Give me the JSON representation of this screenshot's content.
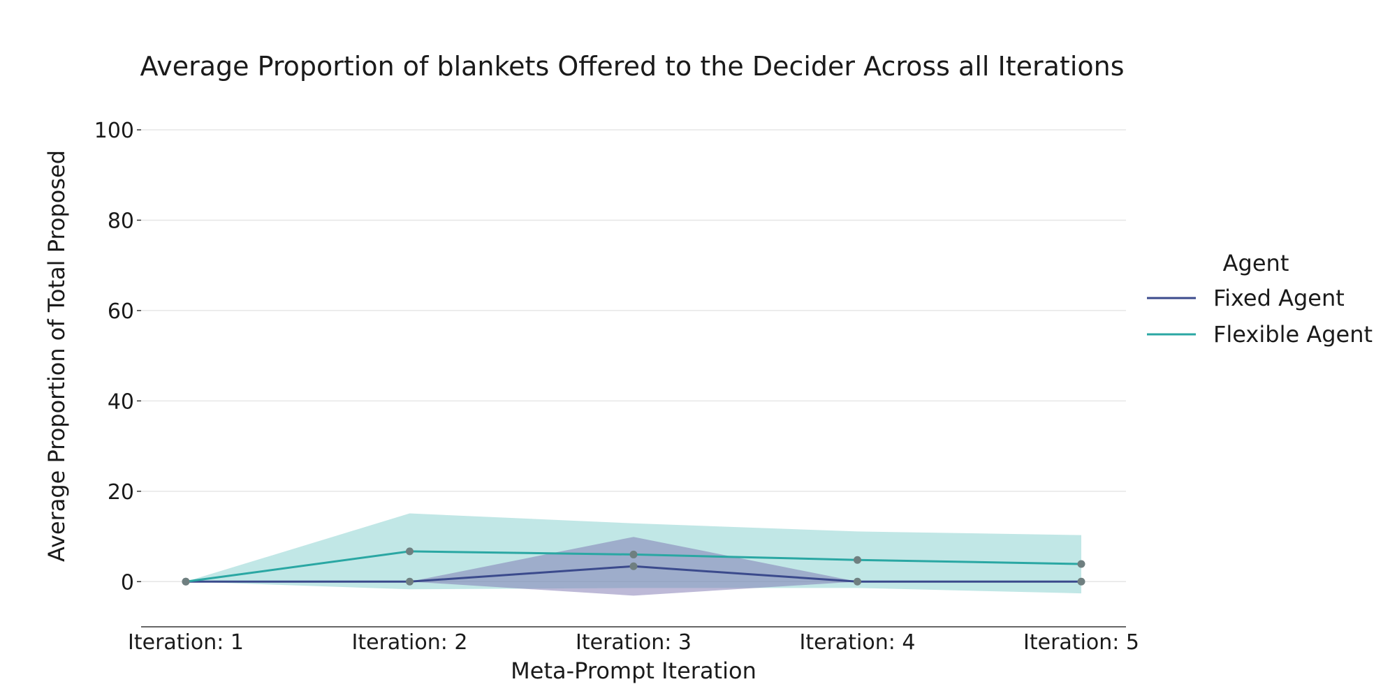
{
  "chart_data": {
    "type": "line",
    "title": "Average Proportion of blankets Offered to the Decider Across all Iterations",
    "xlabel": "Meta-Prompt Iteration",
    "ylabel": "Average Proportion of Total Proposed",
    "categories": [
      "Iteration: 1",
      "Iteration: 2",
      "Iteration: 3",
      "Iteration: 4",
      "Iteration: 5"
    ],
    "ylim": [
      -10,
      100
    ],
    "yticks": [
      0,
      20,
      40,
      60,
      80,
      100
    ],
    "grid": "horizontal",
    "legend": {
      "title": "Agent",
      "placement": "right"
    },
    "series": [
      {
        "name": "Fixed Agent",
        "color": "#3b4a8c",
        "band_color": "#7b74b0",
        "values": [
          0,
          0,
          3.4,
          0,
          0
        ],
        "lower": [
          0,
          0,
          -3.1,
          0,
          0
        ],
        "upper": [
          0,
          0,
          9.9,
          0,
          0
        ]
      },
      {
        "name": "Flexible Agent",
        "color": "#2aa7a3",
        "band_color": "#6cc6c4",
        "values": [
          0,
          6.7,
          6.0,
          4.8,
          3.9
        ],
        "lower": [
          0,
          -1.7,
          -1.4,
          -1.4,
          -2.6
        ],
        "upper": [
          0,
          15.1,
          12.9,
          11.1,
          10.3
        ]
      }
    ],
    "marker_color": "#6f7f80"
  }
}
